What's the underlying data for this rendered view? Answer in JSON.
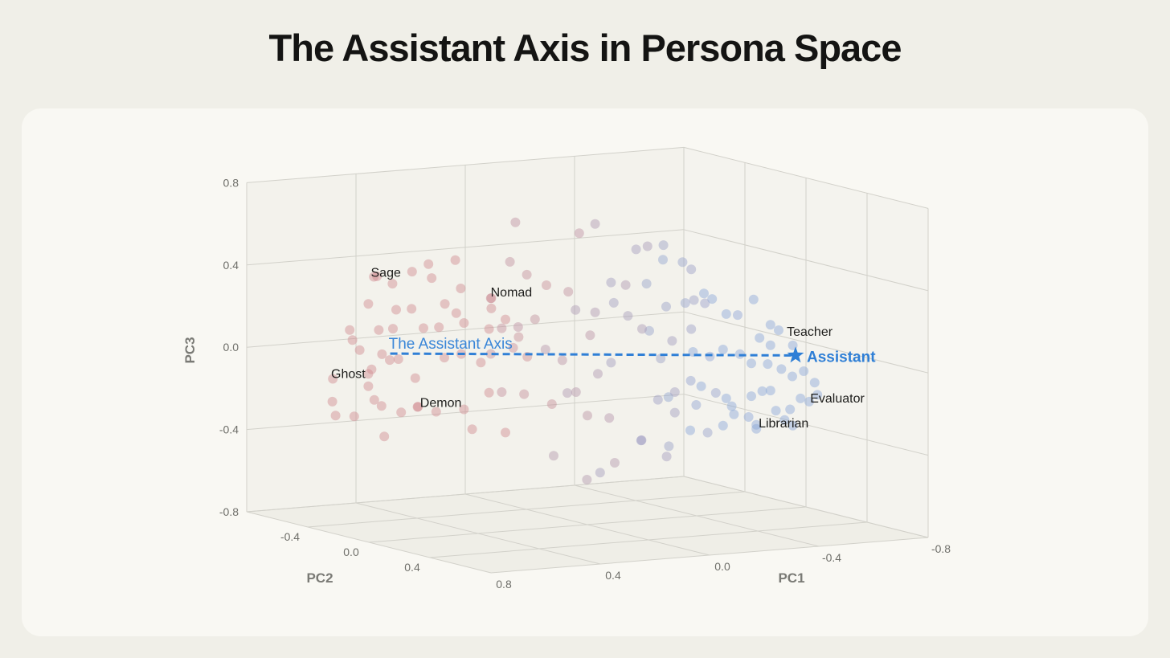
{
  "title": "The Assistant Axis in Persona Space",
  "chart_data": {
    "type": "scatter3d",
    "title": "The Assistant Axis in Persona Space",
    "axes": {
      "x": {
        "label": "PC1",
        "range": [
          -0.8,
          0.8
        ],
        "ticks": [
          "0.8",
          "0.4",
          "0.0",
          "-0.4",
          "-0.8"
        ]
      },
      "y": {
        "label": "PC2",
        "range": [
          -0.8,
          0.8
        ],
        "ticks": [
          "-0.4",
          "0.0",
          "0.4"
        ]
      },
      "z": {
        "label": "PC3",
        "range": [
          -0.8,
          0.8
        ],
        "ticks": [
          "0.8",
          "0.4",
          "0.0",
          "-0.4",
          "-0.8"
        ]
      }
    },
    "grid": true,
    "colors": {
      "role_play_end": "#d08a90",
      "assistant_end": "#8aa6d8",
      "axis": "#2f7fd6"
    },
    "axis_line": {
      "label": "The Assistant Axis",
      "from": [
        0.61,
        -0.2,
        0.06
      ],
      "to": [
        -0.65,
        0.2,
        -0.01
      ]
    },
    "assistant": {
      "label": "Assistant",
      "point": [
        -0.65,
        0.2,
        -0.01
      ],
      "marker": "star-icon"
    },
    "personas": [
      {
        "label": "Sage",
        "point": [
          0.67,
          -0.2,
          0.44
        ]
      },
      {
        "label": "Nomad",
        "point": [
          0.24,
          -0.2,
          0.29
        ]
      },
      {
        "label": "Ghost",
        "point": [
          0.69,
          -0.2,
          -0.09
        ]
      },
      {
        "label": "Demon",
        "point": [
          0.51,
          -0.2,
          -0.21
        ]
      },
      {
        "label": "Teacher",
        "point": [
          -0.64,
          0.2,
          0.04
        ]
      },
      {
        "label": "Evaluator",
        "point": [
          -0.7,
          0.2,
          -0.24
        ]
      },
      {
        "label": "Librarian",
        "point": [
          -0.73,
          -0.2,
          -0.45
        ]
      }
    ],
    "points": [
      [
        0.04,
        -0.4,
        0.6
      ],
      [
        -0.14,
        -0.2,
        0.61
      ],
      [
        0.03,
        0,
        0.62
      ],
      [
        0.26,
        -0.4,
        0.44
      ],
      [
        0.47,
        -0.2,
        0.48
      ],
      [
        0.77,
        0,
        0.49
      ],
      [
        0.49,
        -0.4,
        0.35
      ],
      [
        0.53,
        -0.2,
        0.45
      ],
      [
        0.57,
        0,
        0.46
      ],
      [
        0.06,
        -0.4,
        0.41
      ],
      [
        0.11,
        -0.2,
        0.39
      ],
      [
        0.15,
        0,
        0.38
      ],
      [
        0.24,
        -0.4,
        0.3
      ],
      [
        0.69,
        -0.2,
        0.31
      ],
      [
        0.7,
        0,
        0.32
      ],
      [
        0.42,
        -0.4,
        0.22
      ],
      [
        0.41,
        -0.2,
        0.28
      ],
      [
        0.48,
        0,
        0.28
      ],
      [
        0.13,
        -0.4,
        0.24
      ],
      [
        0.24,
        -0.2,
        0.24
      ],
      [
        0.3,
        0,
        0.23
      ],
      [
        0.03,
        -0.4,
        0.09
      ],
      [
        0.08,
        -0.2,
        0.17
      ],
      [
        0.07,
        0,
        0.34
      ],
      [
        -0.18,
        -0.4,
        0.15
      ],
      [
        -0.14,
        -0.2,
        0.18
      ],
      [
        0.87,
        0,
        0.24
      ],
      [
        0.54,
        -0.4,
        0.13
      ],
      [
        0.6,
        -0.2,
        0.18
      ],
      [
        0.6,
        0,
        0.22
      ],
      [
        0.32,
        -0.4,
        0.12
      ],
      [
        0.34,
        -0.2,
        0.18
      ],
      [
        0.36,
        0,
        0.19
      ],
      [
        0.09,
        -0.4,
        0.09
      ],
      [
        0.14,
        -0.2,
        0.09
      ],
      [
        0.86,
        0,
        0.19
      ],
      [
        0.61,
        -0.4,
        0.04
      ],
      [
        0.64,
        -0.2,
        0.06
      ],
      [
        0.79,
        0,
        0.04
      ],
      [
        0.5,
        -0.4,
        -0.02
      ],
      [
        0.58,
        -0.2,
        0.03
      ],
      [
        0.63,
        0,
        -0.02
      ],
      [
        0.3,
        -0.4,
        -0.03
      ],
      [
        0.35,
        -0.2,
        0.03
      ],
      [
        0.39,
        0,
        0.03
      ],
      [
        0.13,
        -0.4,
        -0.03
      ],
      [
        0.16,
        -0.2,
        0.04
      ],
      [
        0.22,
        0,
        0.04
      ],
      [
        -0.07,
        -0.4,
        -0.03
      ],
      [
        -0.02,
        -0.2,
        -0.04
      ],
      [
        0.82,
        -0.2,
        -0.04
      ],
      [
        0.71,
        -0.4,
        -0.2
      ],
      [
        0.81,
        -0.2,
        -0.22
      ],
      [
        0.63,
        -0.4,
        -0.28
      ],
      [
        0.69,
        -0.2,
        -0.03
      ],
      [
        0.78,
        0,
        -0.11
      ],
      [
        0.53,
        -0.4,
        -0.24
      ],
      [
        0.57,
        -0.2,
        -0.23
      ],
      [
        0.62,
        0,
        -0.16
      ],
      [
        0.33,
        -0.4,
        -0.29
      ],
      [
        0.34,
        -0.2,
        -0.24
      ],
      [
        0.36,
        0,
        -0.12
      ],
      [
        0.09,
        -0.4,
        -0.22
      ],
      [
        0.12,
        -0.2,
        -0.19
      ],
      [
        0.13,
        0,
        -0.2
      ],
      [
        -0.15,
        -0.4,
        -0.25
      ],
      [
        -0.07,
        -0.2,
        -0.2
      ],
      [
        0.0,
        0,
        -0.27
      ],
      [
        0.52,
        -0.4,
        -0.39
      ],
      [
        0.31,
        -0.2,
        -0.34
      ],
      [
        0.3,
        0,
        -0.32
      ],
      [
        -0.1,
        -0.4,
        -0.55
      ],
      [
        -0.11,
        -0.2,
        -0.63
      ],
      [
        -0.1,
        0,
        -0.51
      ],
      [
        -0.27,
        -0.4,
        -0.65
      ],
      [
        -0.31,
        -0.2,
        -0.46
      ],
      [
        -0.08,
        0,
        -0.29
      ],
      [
        -0.31,
        -0.4,
        -0.12
      ],
      [
        -0.15,
        -0.2,
        -0.12
      ],
      [
        -0.01,
        0,
        0.12
      ],
      [
        -0.32,
        -0.4,
        0.17
      ],
      [
        -0.26,
        -0.2,
        0.15
      ],
      [
        -0.2,
        0,
        0.13
      ],
      [
        -0.44,
        -0.4,
        0.25
      ],
      [
        -0.29,
        -0.2,
        0.47
      ],
      [
        -0.22,
        0,
        0.53
      ],
      [
        -0.5,
        -0.4,
        0.36
      ],
      [
        -0.39,
        -0.2,
        0.48
      ],
      [
        -0.14,
        0,
        0.35
      ],
      [
        -0.31,
        -0.4,
        0.27
      ],
      [
        -0.46,
        -0.2,
        0.39
      ],
      [
        -0.38,
        0,
        0.4
      ],
      [
        -0.65,
        -0.4,
        0.18
      ],
      [
        -0.47,
        -0.2,
        0.19
      ],
      [
        -0.43,
        0,
        0.23
      ],
      [
        -0.68,
        -0.4,
        0.15
      ],
      [
        -0.62,
        -0.2,
        0.12
      ],
      [
        -0.55,
        0,
        0.16
      ],
      [
        -0.72,
        -0.2,
        0.18
      ],
      [
        -0.67,
        0,
        0.1
      ],
      [
        -0.7,
        0,
        0.07
      ],
      [
        -0.72,
        -0.4,
        -0.1
      ],
      [
        -0.56,
        -0.2,
        -0.08
      ],
      [
        -0.38,
        0,
        0.11
      ],
      [
        -0.61,
        -0.4,
        -0.1
      ],
      [
        -0.67,
        -0.2,
        -0.08
      ],
      [
        -0.6,
        0,
        -0.08
      ],
      [
        -0.63,
        0,
        0.04
      ],
      [
        -0.67,
        0,
        0.0
      ],
      [
        -0.71,
        0,
        -0.12
      ],
      [
        -0.75,
        0,
        -0.16
      ],
      [
        -0.68,
        0.2,
        -0.09
      ],
      [
        -0.72,
        0.2,
        -0.15
      ],
      [
        -0.73,
        0.2,
        -0.21
      ],
      [
        -0.78,
        0,
        -0.27
      ],
      [
        -0.63,
        0.2,
        -0.27
      ],
      [
        -0.69,
        0,
        -0.32
      ],
      [
        -0.73,
        -0.2,
        -0.43
      ],
      [
        -0.59,
        0,
        -0.34
      ],
      [
        -0.76,
        -0.4,
        -0.42
      ],
      [
        -0.62,
        -0.2,
        -0.29
      ],
      [
        -0.47,
        0,
        -0.21
      ],
      [
        -0.64,
        -0.4,
        -0.27
      ],
      [
        -0.49,
        -0.2,
        -0.19
      ],
      [
        -0.32,
        0,
        -0.19
      ],
      [
        -0.52,
        -0.4,
        -0.31
      ],
      [
        -0.37,
        -0.2,
        -0.27
      ],
      [
        -0.32,
        0,
        -0.29
      ],
      [
        -0.6,
        -0.4,
        -0.48
      ],
      [
        -0.51,
        -0.2,
        -0.31
      ],
      [
        -0.44,
        0,
        -0.4
      ],
      [
        -0.72,
        -0.4,
        -0.47
      ],
      [
        -0.41,
        -0.2,
        -0.5
      ],
      [
        -0.29,
        0,
        -0.5
      ],
      [
        -0.42,
        -0.4,
        -0.51
      ],
      [
        -0.38,
        -0.2,
        -0.07
      ],
      [
        -0.31,
        0,
        0.06
      ],
      [
        -0.45,
        -0.4,
        0.02
      ],
      [
        -0.4,
        -0.2,
        0.18
      ],
      [
        -0.39,
        0,
        0.25
      ],
      [
        -0.64,
        0,
        -0.22
      ],
      [
        -0.67,
        0,
        -0.22
      ],
      [
        -0.61,
        0.2,
        -0.32
      ],
      [
        -0.64,
        0.2,
        -0.35
      ],
      [
        -0.66,
        0,
        -0.09
      ],
      [
        -0.64,
        -0.2,
        -0.33
      ],
      [
        -0.6,
        0,
        -0.24
      ]
    ]
  }
}
